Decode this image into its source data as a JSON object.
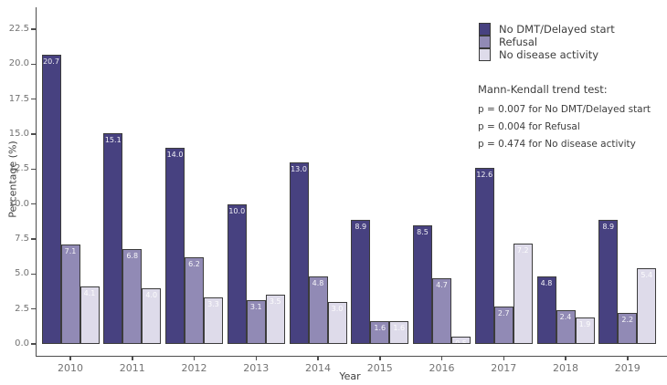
{
  "chart_data": {
    "type": "bar",
    "title": "",
    "xlabel": "Year",
    "ylabel": "Percentage (%)",
    "categories": [
      "2010",
      "2011",
      "2012",
      "2013",
      "2014",
      "2015",
      "2016",
      "2017",
      "2018",
      "2019"
    ],
    "series": [
      {
        "name": "No DMT/Delayed start",
        "color": "#474180",
        "values": [
          20.7,
          15.1,
          14.0,
          10.0,
          13.0,
          8.9,
          8.5,
          12.6,
          4.8,
          8.9
        ]
      },
      {
        "name": "Refusal",
        "color": "#918ab5",
        "values": [
          7.1,
          6.8,
          6.2,
          3.1,
          4.8,
          1.6,
          4.7,
          2.7,
          2.4,
          2.2
        ]
      },
      {
        "name": "No disease activity",
        "color": "#dedbea",
        "values": [
          4.1,
          4.0,
          3.3,
          3.5,
          3.0,
          1.6,
          0.5,
          7.2,
          1.9,
          5.4
        ]
      }
    ],
    "yticks": [
      0.0,
      2.5,
      5.0,
      7.5,
      10.0,
      12.5,
      15.0,
      17.5,
      20.0,
      22.5
    ],
    "ylim": [
      0,
      24
    ],
    "grid": false,
    "legend_position": "top-right",
    "bar_labels": "white, one decimal, inside top of each bar"
  },
  "annotation": {
    "heading": "Mann-Kendall trend test:",
    "lines": [
      "p = 0.007 for No DMT/Delayed start",
      "p = 0.004 for Refusal",
      "p = 0.474 for No disease activity"
    ]
  }
}
